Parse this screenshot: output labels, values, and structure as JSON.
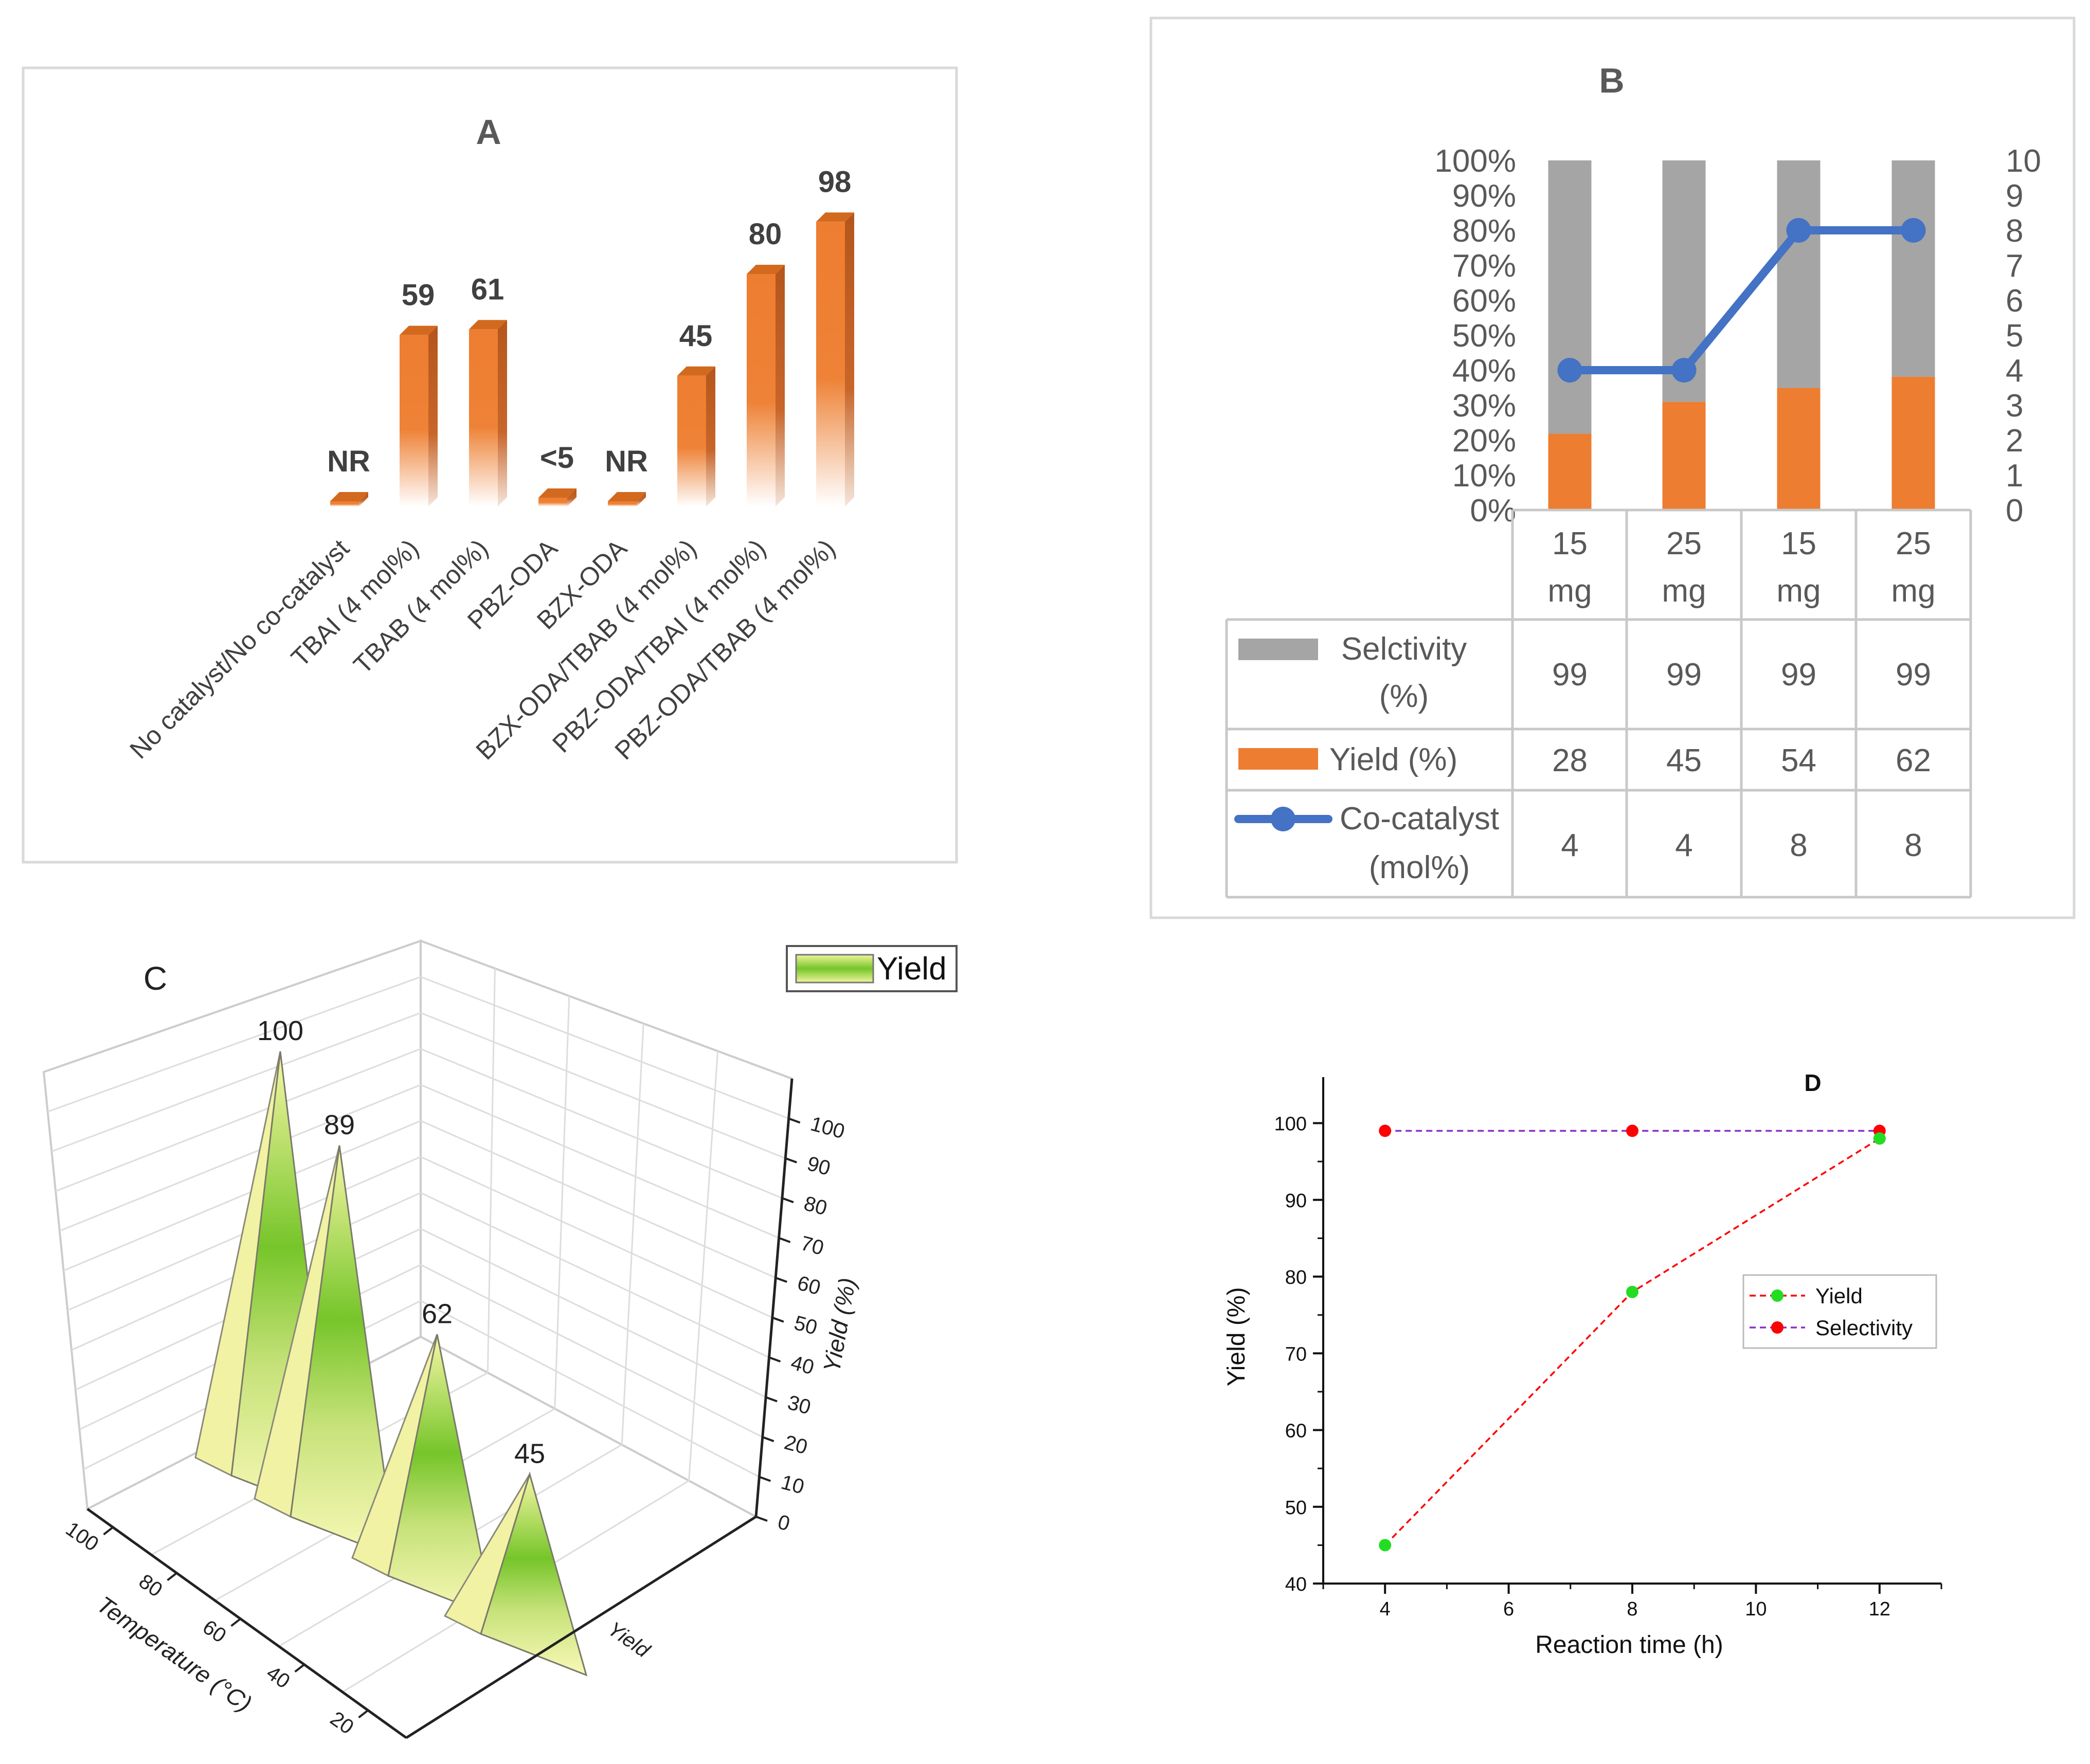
{
  "chart_data": [
    {
      "panel": "A",
      "type": "bar",
      "title": "A",
      "categories": [
        "No catalyst/No co-catalyst",
        "TBAI (4 mol%)",
        "TBAB (4 mol%)",
        "PBZ-ODA",
        "BZX-ODA",
        "BZX-ODA/TBAB (4 mol%)",
        "PBZ-ODA/TBAI (4 mol%)",
        "PBZ-ODA/TBAB (4 mol%)"
      ],
      "values": [
        0,
        59,
        61,
        3,
        0,
        45,
        80,
        98
      ],
      "data_labels": [
        "NR",
        "59",
        "61",
        "<5",
        "NR",
        "45",
        "80",
        "98"
      ],
      "ylim": [
        0,
        100
      ],
      "bar_color": "#ED7D31"
    },
    {
      "panel": "B",
      "type": "bar",
      "title": "B",
      "categories": [
        "15\nmg",
        "25\nmg",
        "15\nmg",
        "25\nmg"
      ],
      "category_lines": [
        [
          "15",
          "mg"
        ],
        [
          "25",
          "mg"
        ],
        [
          "15",
          "mg"
        ],
        [
          "25",
          "mg"
        ]
      ],
      "left_axis_ticks": [
        "0%",
        "10%",
        "20%",
        "30%",
        "40%",
        "50%",
        "60%",
        "70%",
        "80%",
        "90%",
        "100%"
      ],
      "right_axis_ticks": [
        "0",
        "1",
        "2",
        "3",
        "4",
        "5",
        "6",
        "7",
        "8",
        "9",
        "10"
      ],
      "series": [
        {
          "name": "Selctivity (%)",
          "name_lines": [
            "Selctivity",
            "(%)"
          ],
          "values": [
            99,
            99,
            99,
            99
          ],
          "color": "#A5A5A5"
        },
        {
          "name": "Yield (%)",
          "name_lines": [
            "Yield (%)"
          ],
          "values": [
            28,
            45,
            54,
            62
          ],
          "color": "#ED7D31"
        },
        {
          "name": "Co-catalyst (mol%)",
          "name_lines": [
            "Co-catalyst",
            "(mol%)"
          ],
          "values": [
            4,
            4,
            8,
            8
          ],
          "color": "#4472C4",
          "axis": "right",
          "chart_type": "line"
        }
      ]
    },
    {
      "panel": "C",
      "type": "bar",
      "title": "C",
      "legend": "Yield",
      "categories": [
        100,
        80,
        60,
        40
      ],
      "values": [
        100,
        89,
        62,
        45
      ],
      "data_labels": [
        "100",
        "89",
        "62",
        "45"
      ],
      "xlabel": "Temperature (°C)",
      "x_ticks": [
        "100",
        "80",
        "60",
        "40",
        "20"
      ],
      "zlabel": "Yield (%)",
      "z_ticks": [
        "0",
        "10",
        "20",
        "30",
        "40",
        "50",
        "60",
        "70",
        "80",
        "90",
        "100"
      ],
      "ylabel": "Yield",
      "fill_colors": [
        "#76C52A",
        "#F7F7A6"
      ]
    },
    {
      "panel": "D",
      "type": "line",
      "title": "D",
      "xlabel": "Reaction time (h)",
      "ylabel": "Yield (%)",
      "x": [
        4,
        8,
        12
      ],
      "x_ticks": [
        "4",
        "6",
        "8",
        "10",
        "12"
      ],
      "y_ticks": [
        "40",
        "50",
        "60",
        "70",
        "80",
        "90",
        "100"
      ],
      "xlim": [
        3,
        13
      ],
      "ylim": [
        40,
        106
      ],
      "legend_position": "right",
      "series": [
        {
          "name": "Yield",
          "values": [
            45,
            78,
            98
          ],
          "marker_color": "#22DD22",
          "line_color": "#FF0000"
        },
        {
          "name": "Selectivity",
          "values": [
            99,
            99,
            99
          ],
          "marker_color": "#FF0000",
          "line_color": "#8B2FC9"
        }
      ]
    }
  ]
}
